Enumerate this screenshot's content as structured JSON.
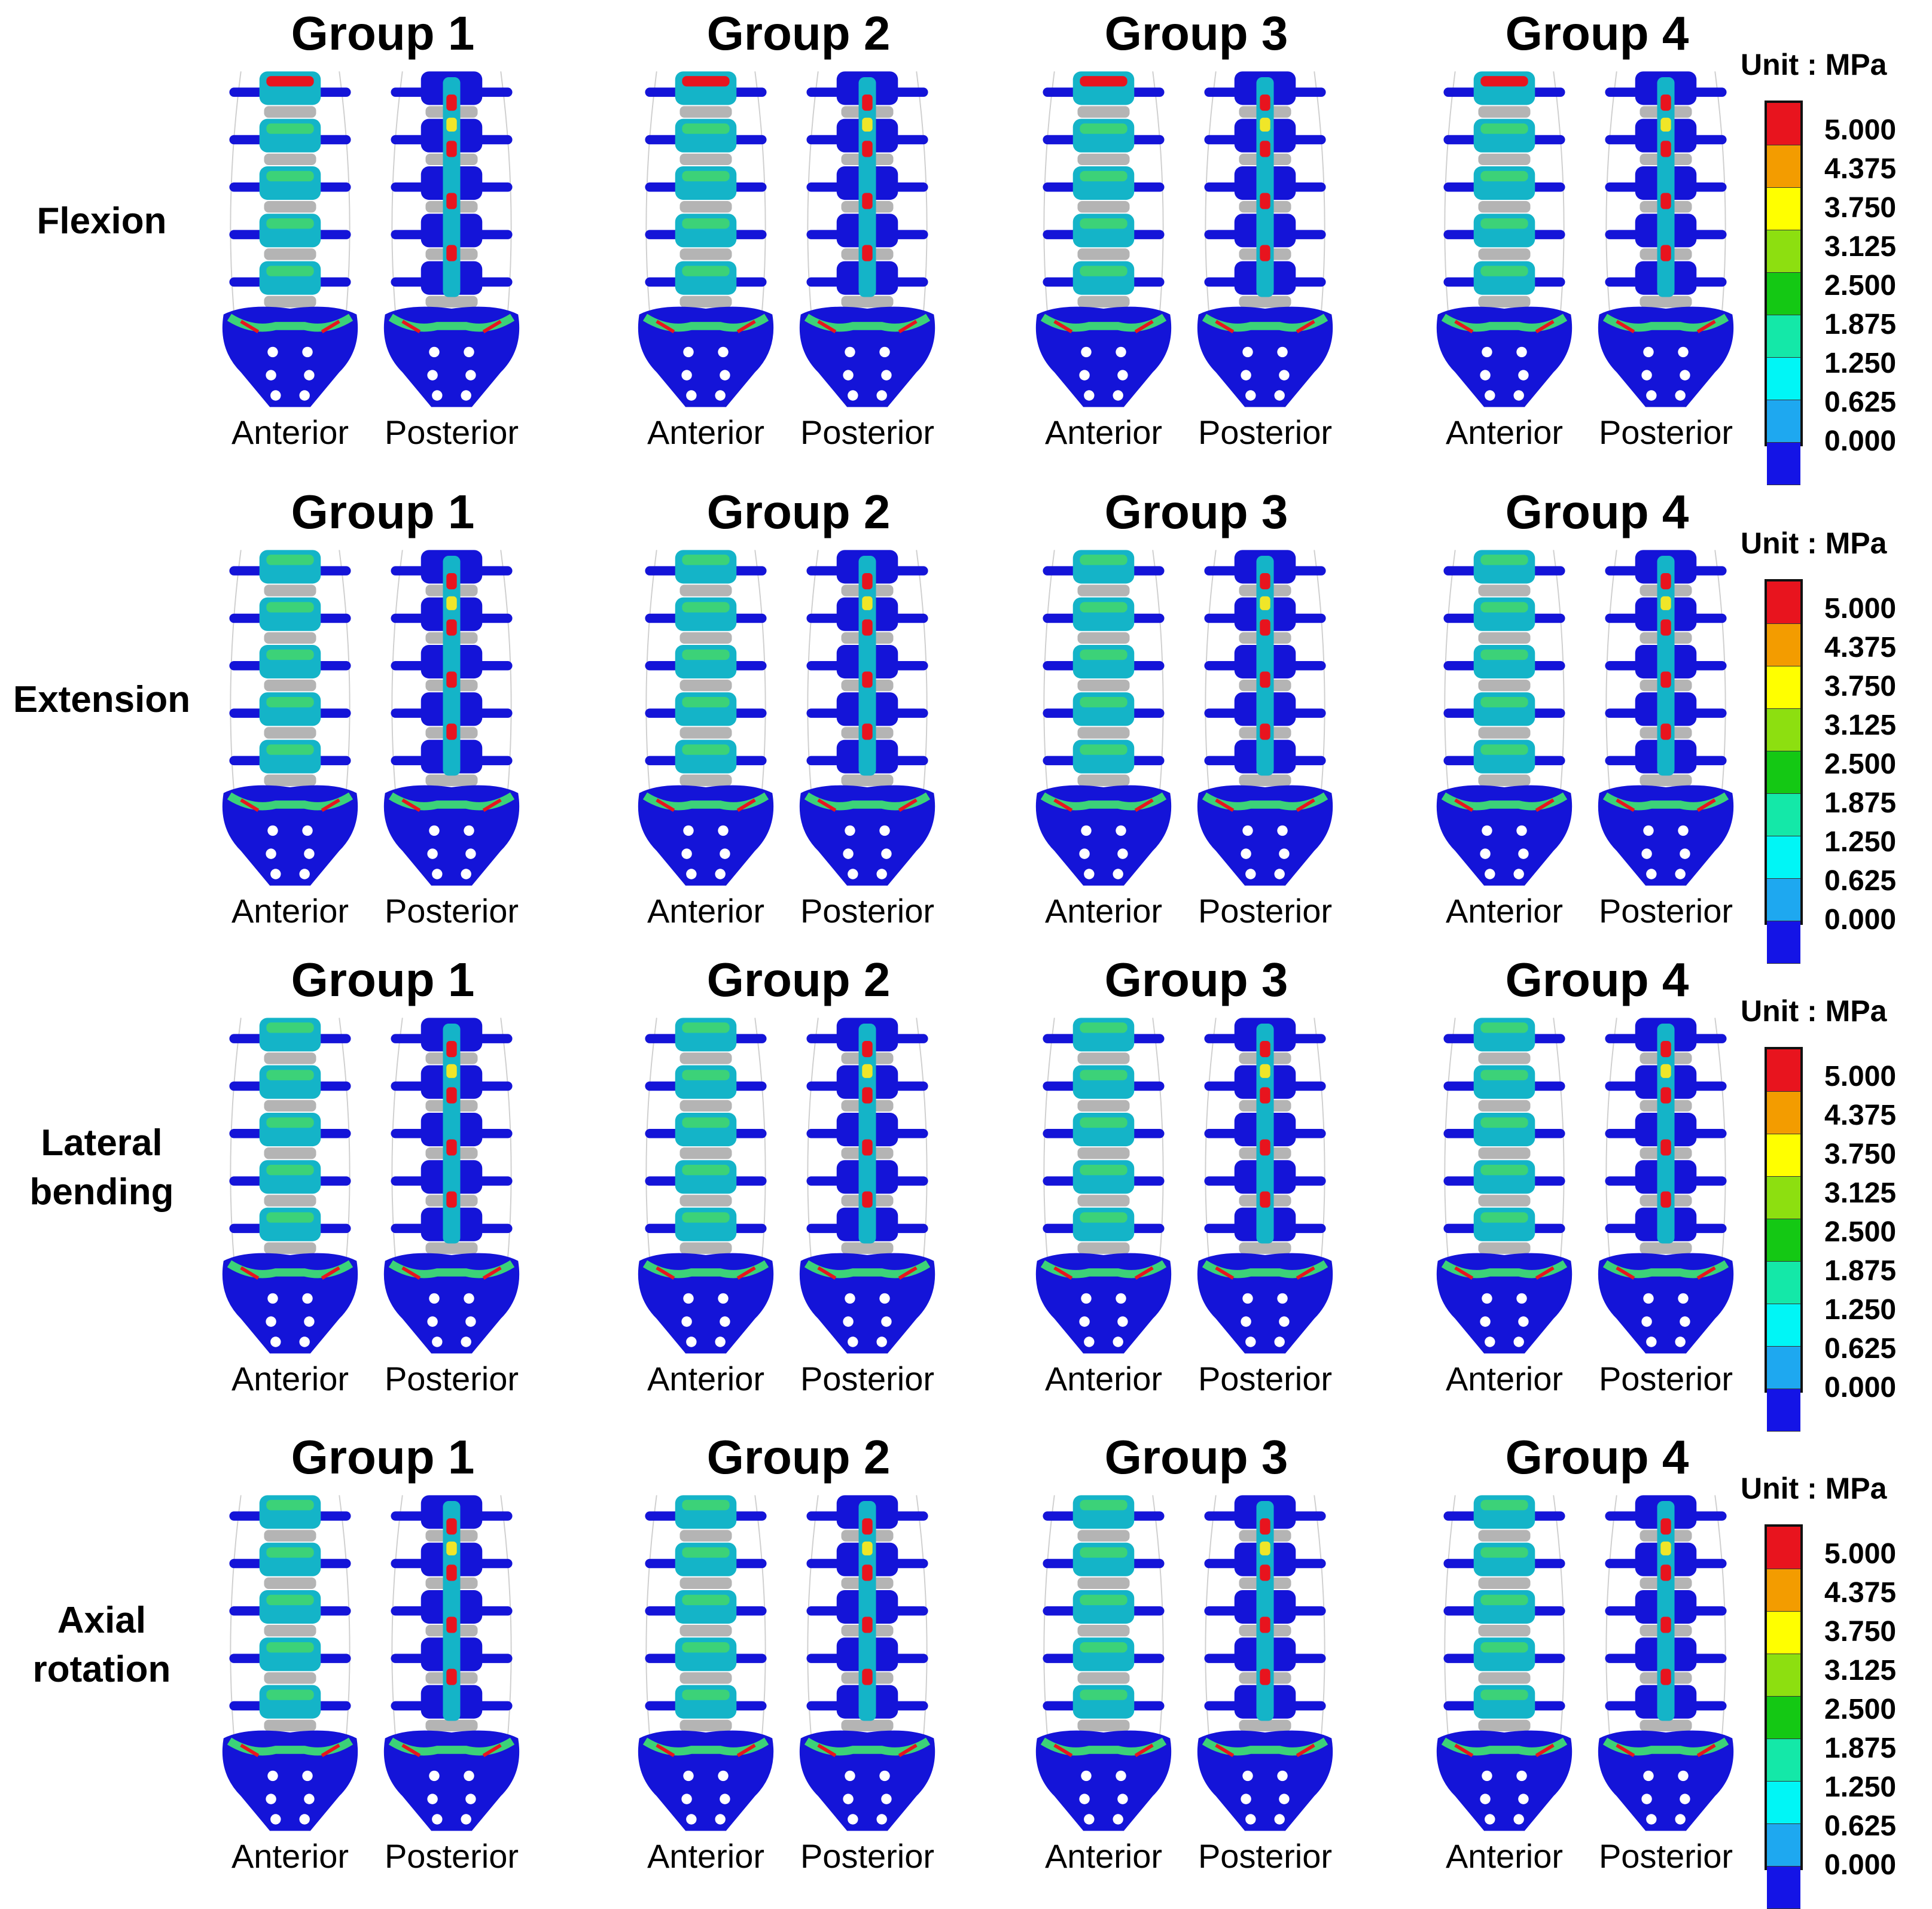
{
  "groups": [
    "Group 1",
    "Group 2",
    "Group 3",
    "Group 4"
  ],
  "views": {
    "anterior": "Anterior",
    "posterior": "Posterior"
  },
  "rows": [
    {
      "label_lines": [
        "Flexion"
      ]
    },
    {
      "label_lines": [
        "Extension"
      ]
    },
    {
      "label_lines": [
        "Lateral",
        "bending"
      ]
    },
    {
      "label_lines": [
        "Axial",
        "rotation"
      ]
    }
  ],
  "legend": {
    "title": "Unit : MPa",
    "ticks": [
      "5.000",
      "4.375",
      "3.750",
      "3.125",
      "2.500",
      "1.875",
      "1.250",
      "0.625",
      "0.000"
    ],
    "colors": [
      "#e8141e",
      "#f39c00",
      "#ffff00",
      "#8ddf10",
      "#14c814",
      "#14e8a8",
      "#00f6f6",
      "#1ea8f0",
      "#1414e6"
    ]
  },
  "model_colors": {
    "low": "#1414d8",
    "low_dark": "#0a0a9a",
    "mid": "#14b4c8",
    "mid_green": "#3cd278",
    "high": "#f0e628",
    "peak": "#e8141e",
    "disc": "#b4b4b4",
    "hole": "#ffffff"
  }
}
